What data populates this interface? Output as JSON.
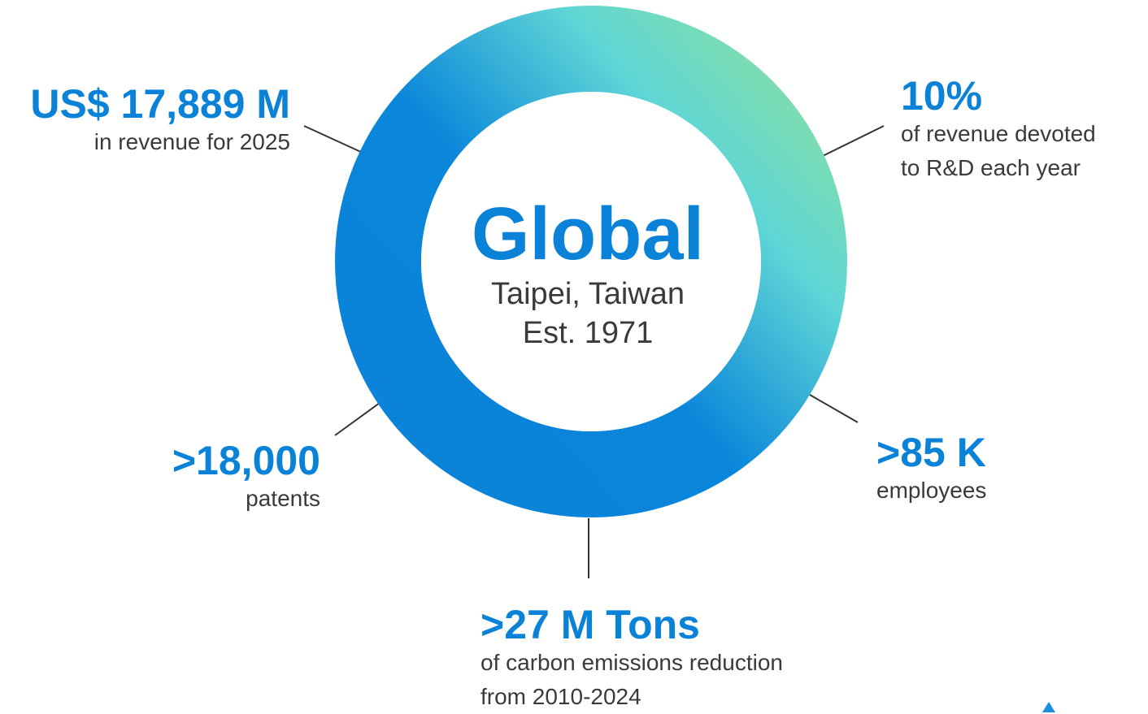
{
  "center": {
    "title": "Global",
    "location": "Taipei, Taiwan",
    "established": "Est. 1971"
  },
  "stats": {
    "revenue": {
      "value": "US$ 17,889 M",
      "description": "in revenue for 2025"
    },
    "rd": {
      "value": "10%",
      "description_line1": "of revenue devoted",
      "description_line2": "to R&D each year"
    },
    "patents": {
      "value": ">18,000",
      "description": "patents"
    },
    "employees": {
      "value": ">85 K",
      "description": "employees"
    },
    "carbon": {
      "value": ">27 M Tons",
      "description_line1": "of carbon emissions reduction",
      "description_line2": "from 2010-2024"
    }
  },
  "colors": {
    "accent_blue": "#0a82d8",
    "ring_gradient_start": "#0a82d8",
    "ring_gradient_mid": "#5fd6d6",
    "ring_gradient_end": "#94e294",
    "text_gray": "#3a3a3a",
    "connector_line": "#333333"
  }
}
